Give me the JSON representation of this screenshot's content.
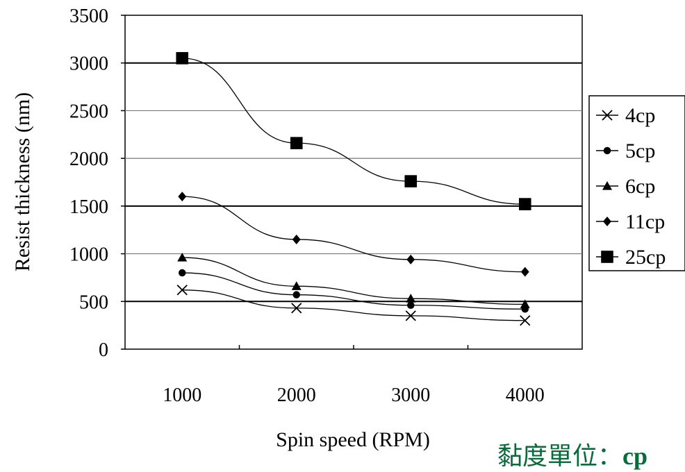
{
  "chart_data": {
    "type": "line",
    "xlabel": "Spin speed (RPM)",
    "ylabel": "Resist thickness (nm)",
    "categories": [
      "1000",
      "2000",
      "3000",
      "4000"
    ],
    "x": [
      1000,
      2000,
      3000,
      4000
    ],
    "ylim": [
      0,
      3500
    ],
    "yticks": [
      "0",
      "500",
      "1000",
      "1500",
      "2000",
      "2500",
      "3000",
      "3500"
    ],
    "grid": true,
    "legend_position": "right",
    "series": [
      {
        "name": "4cp",
        "marker": "x",
        "values": [
          620,
          430,
          350,
          300
        ]
      },
      {
        "name": "5cp",
        "marker": "circle",
        "values": [
          800,
          570,
          460,
          420
        ]
      },
      {
        "name": "6cp",
        "marker": "triangle",
        "values": [
          960,
          660,
          530,
          470
        ]
      },
      {
        "name": "11cp",
        "marker": "diamond",
        "values": [
          1600,
          1150,
          940,
          810
        ]
      },
      {
        "name": "25cp",
        "marker": "square",
        "values": [
          3050,
          2160,
          1760,
          1520
        ]
      }
    ],
    "annotation": {
      "label": "黏度單位：",
      "unit": "cp"
    }
  }
}
